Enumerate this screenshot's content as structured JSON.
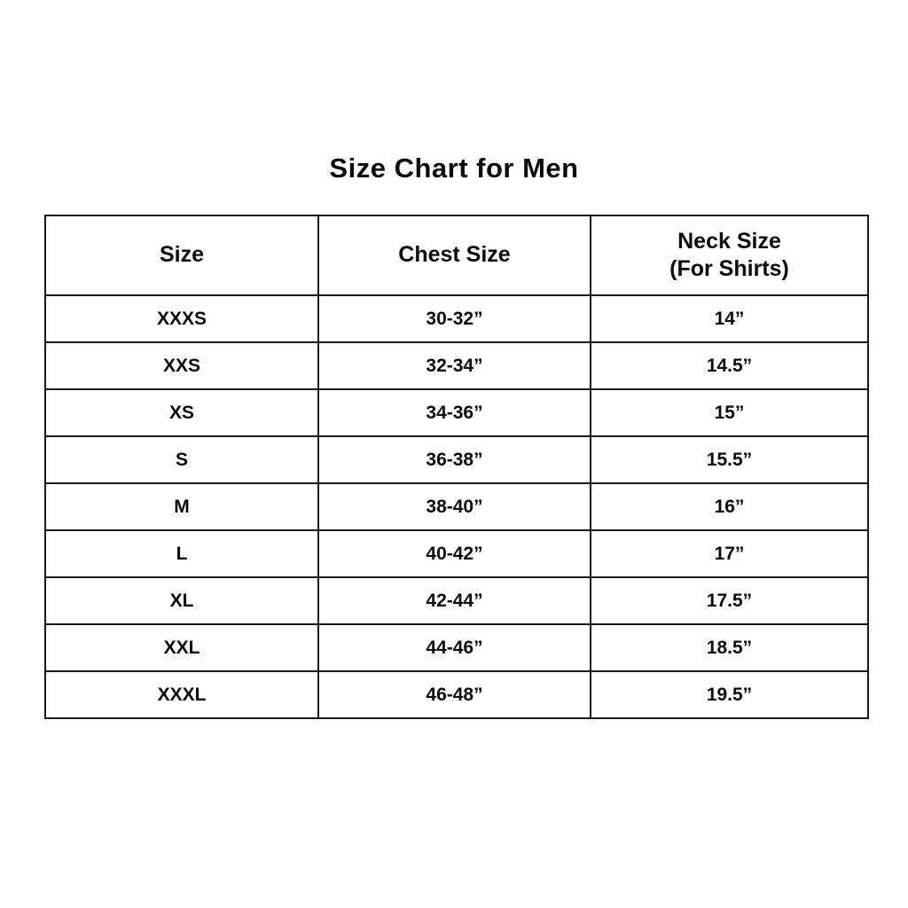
{
  "title": "Size Chart for Men",
  "colors": {
    "background": "#ffffff",
    "text": "#0a0a0a",
    "border": "#1a1a1a"
  },
  "table": {
    "headers": {
      "size": "Size",
      "chest": "Chest Size",
      "neck_line1": "Neck Size",
      "neck_line2": "(For Shirts)"
    },
    "rows": [
      {
        "size": "XXXS",
        "chest": "30-32”",
        "neck": "14”"
      },
      {
        "size": "XXS",
        "chest": "32-34”",
        "neck": "14.5”"
      },
      {
        "size": "XS",
        "chest": "34-36”",
        "neck": "15”"
      },
      {
        "size": "S",
        "chest": "36-38”",
        "neck": "15.5”"
      },
      {
        "size": "M",
        "chest": "38-40”",
        "neck": "16”"
      },
      {
        "size": "L",
        "chest": "40-42”",
        "neck": "17”"
      },
      {
        "size": "XL",
        "chest": "42-44”",
        "neck": "17.5”"
      },
      {
        "size": "XXL",
        "chest": "44-46”",
        "neck": "18.5”"
      },
      {
        "size": "XXXL",
        "chest": "46-48”",
        "neck": "19.5”"
      }
    ]
  },
  "chart_data": {
    "type": "table",
    "title": "Size Chart for Men",
    "columns": [
      "Size",
      "Chest Size",
      "Neck Size (For Shirts)"
    ],
    "rows": [
      [
        "XXXS",
        "30-32”",
        "14”"
      ],
      [
        "XXS",
        "32-34”",
        "14.5”"
      ],
      [
        "XS",
        "34-36”",
        "15”"
      ],
      [
        "S",
        "36-38”",
        "15.5”"
      ],
      [
        "M",
        "38-40”",
        "16”"
      ],
      [
        "L",
        "40-42”",
        "17”"
      ],
      [
        "XL",
        "42-44”",
        "17.5”"
      ],
      [
        "XXL",
        "44-46”",
        "18.5”"
      ],
      [
        "XXXL",
        "46-48”",
        "19.5”"
      ]
    ]
  }
}
